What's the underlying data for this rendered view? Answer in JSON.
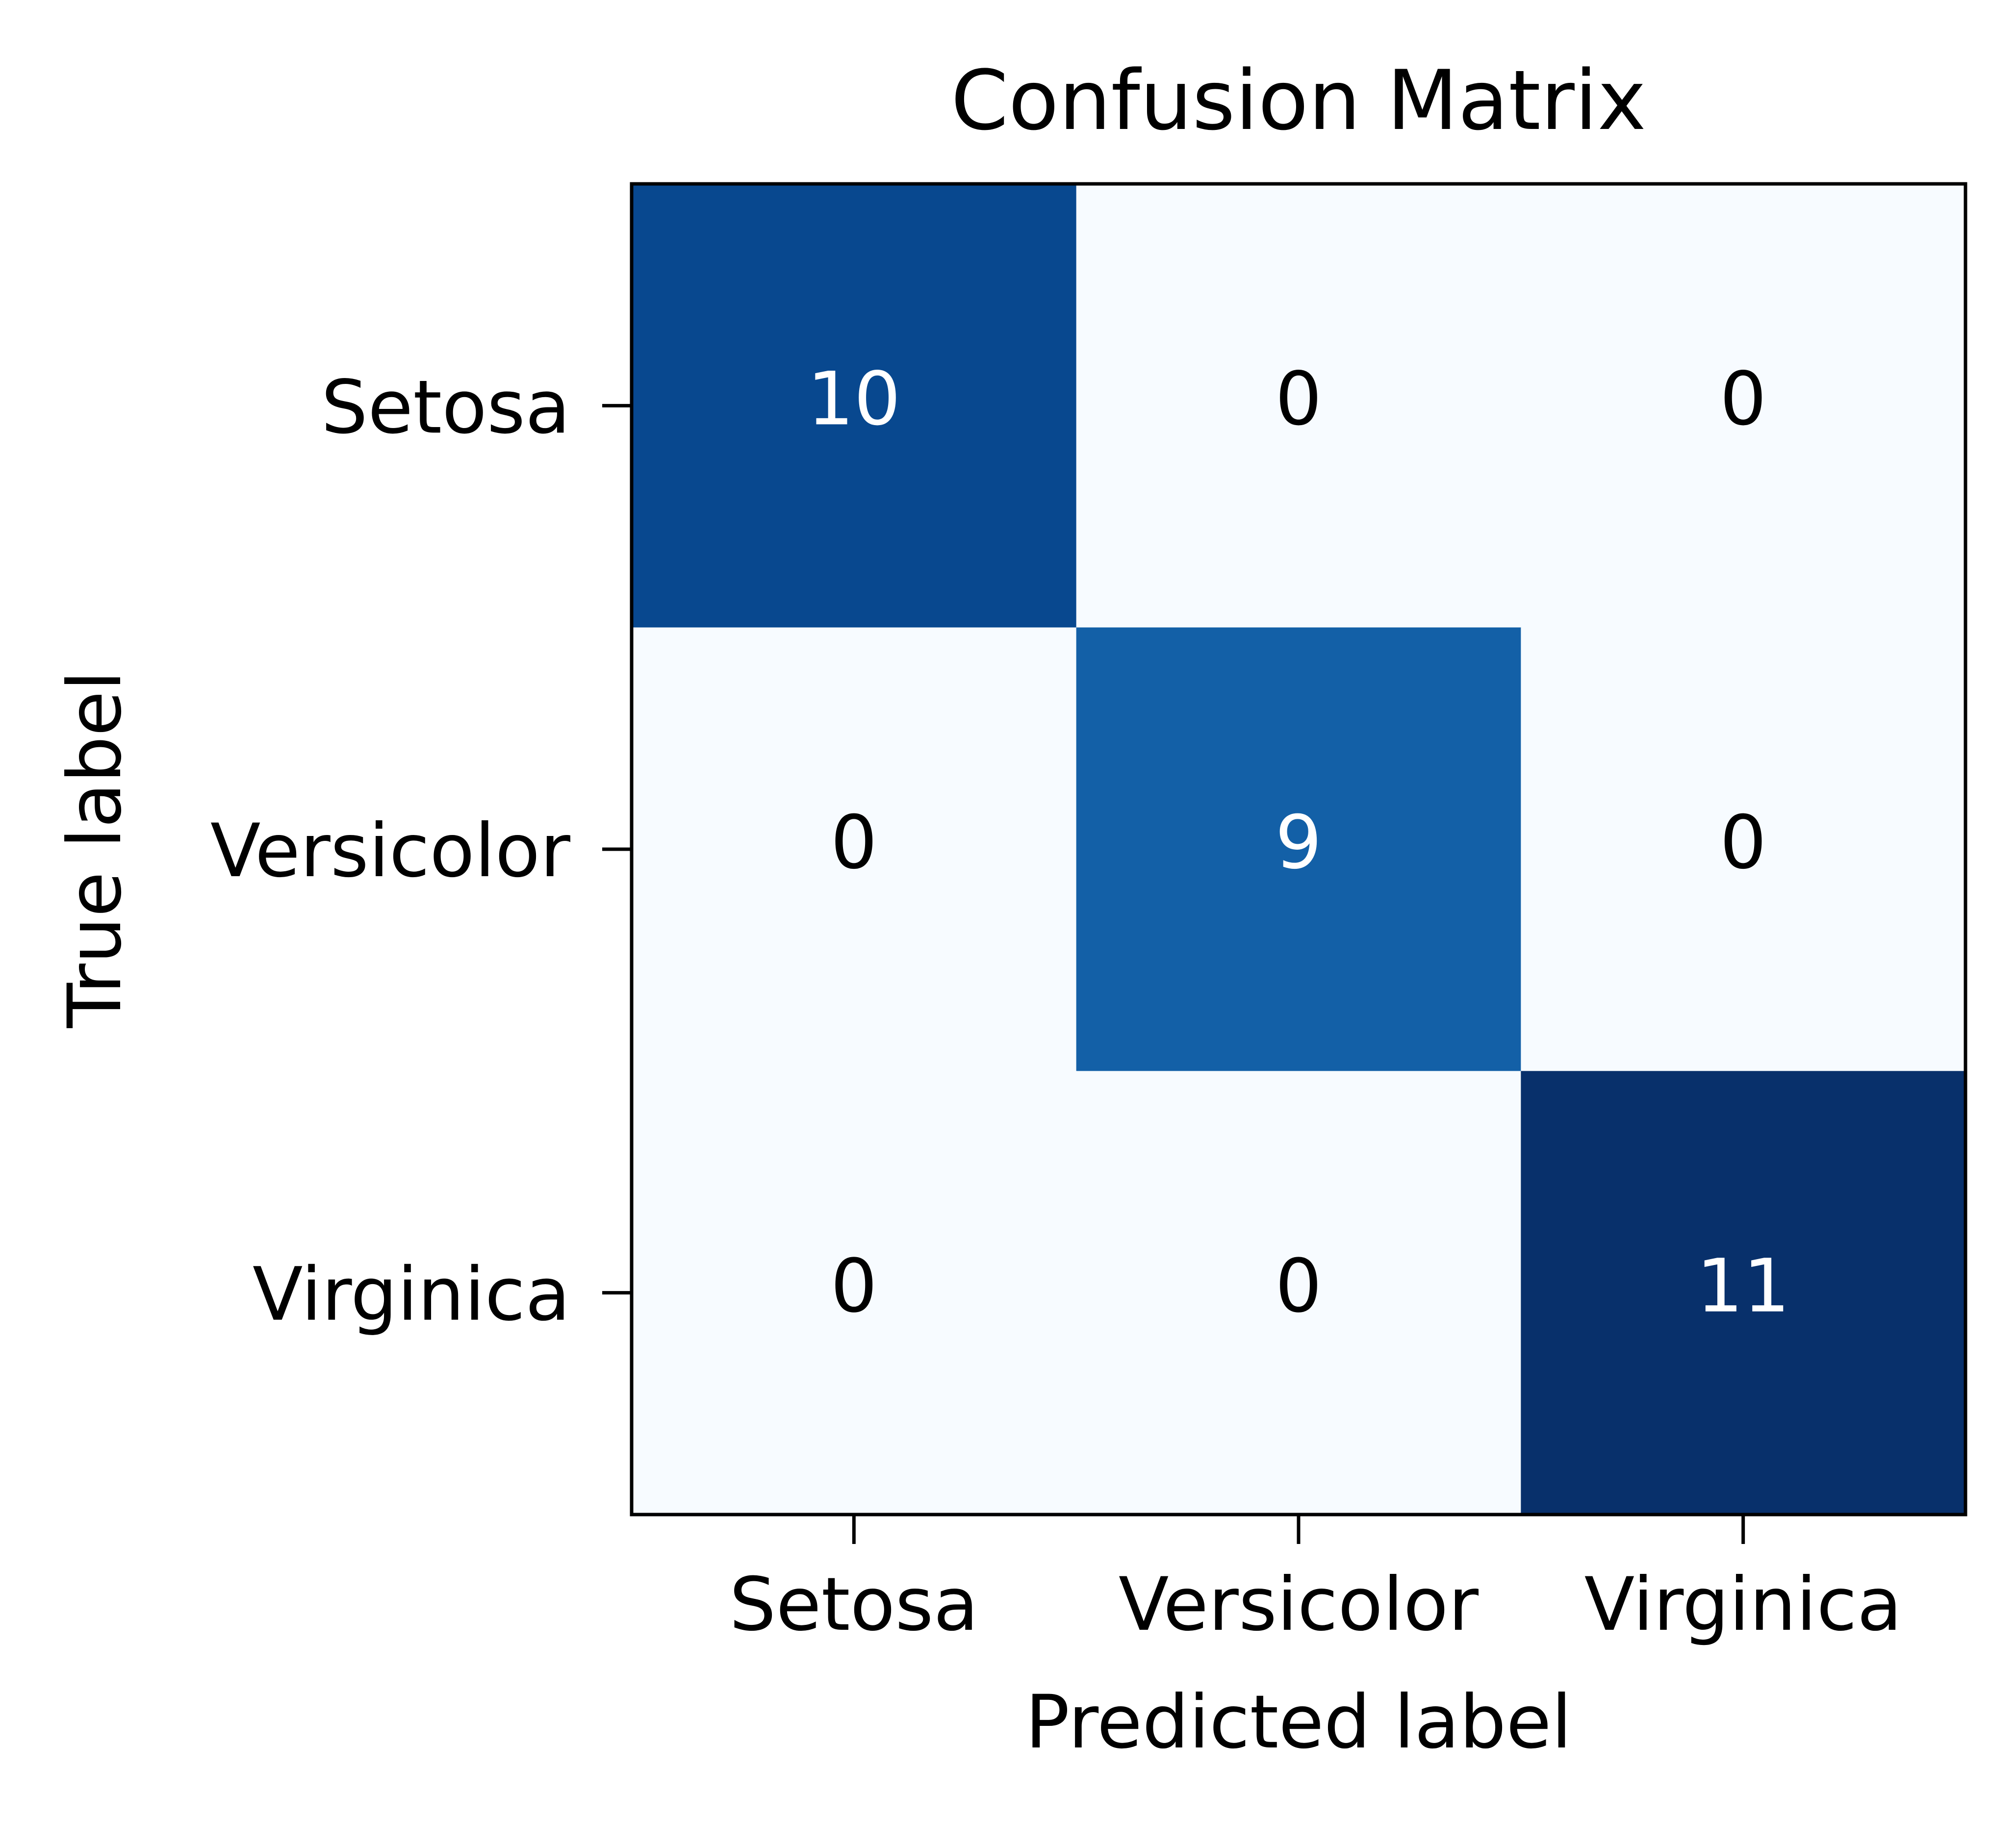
{
  "chart_data": {
    "type": "heatmap",
    "title": "Confusion Matrix",
    "xlabel": "Predicted label",
    "ylabel": "True label",
    "x_categories": [
      "Setosa",
      "Versicolor",
      "Virginica"
    ],
    "y_categories": [
      "Setosa",
      "Versicolor",
      "Virginica"
    ],
    "values": [
      [
        10,
        0,
        0
      ],
      [
        0,
        9,
        0
      ],
      [
        0,
        0,
        11
      ]
    ],
    "value_range": [
      0,
      11
    ],
    "colormap": "Blues",
    "colorbar": false,
    "grid": false
  }
}
